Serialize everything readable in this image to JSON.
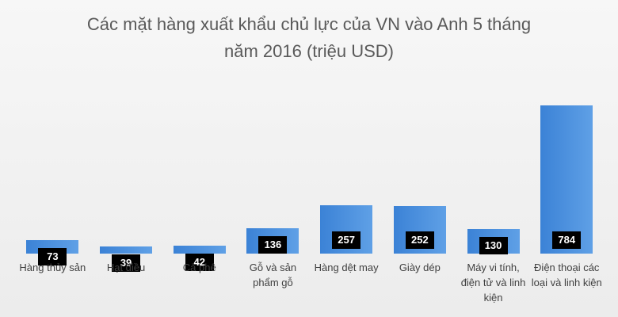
{
  "chart_data": {
    "type": "bar",
    "title": "Các mặt hàng xuất khẩu chủ lực của VN vào Anh 5 tháng năm 2016 (triệu USD)",
    "categories": [
      "Hàng thủy sản",
      "Hạt điều",
      "Cà phê",
      "Gỗ và sản phẩm gỗ",
      "Hàng dệt may",
      "Giày dép",
      "Máy vi tính, điện tử và linh kiện",
      "Điện thoại các loại và linh kiện"
    ],
    "values": [
      73,
      39,
      42,
      136,
      257,
      252,
      130,
      784
    ],
    "color": "#3b82d6"
  }
}
